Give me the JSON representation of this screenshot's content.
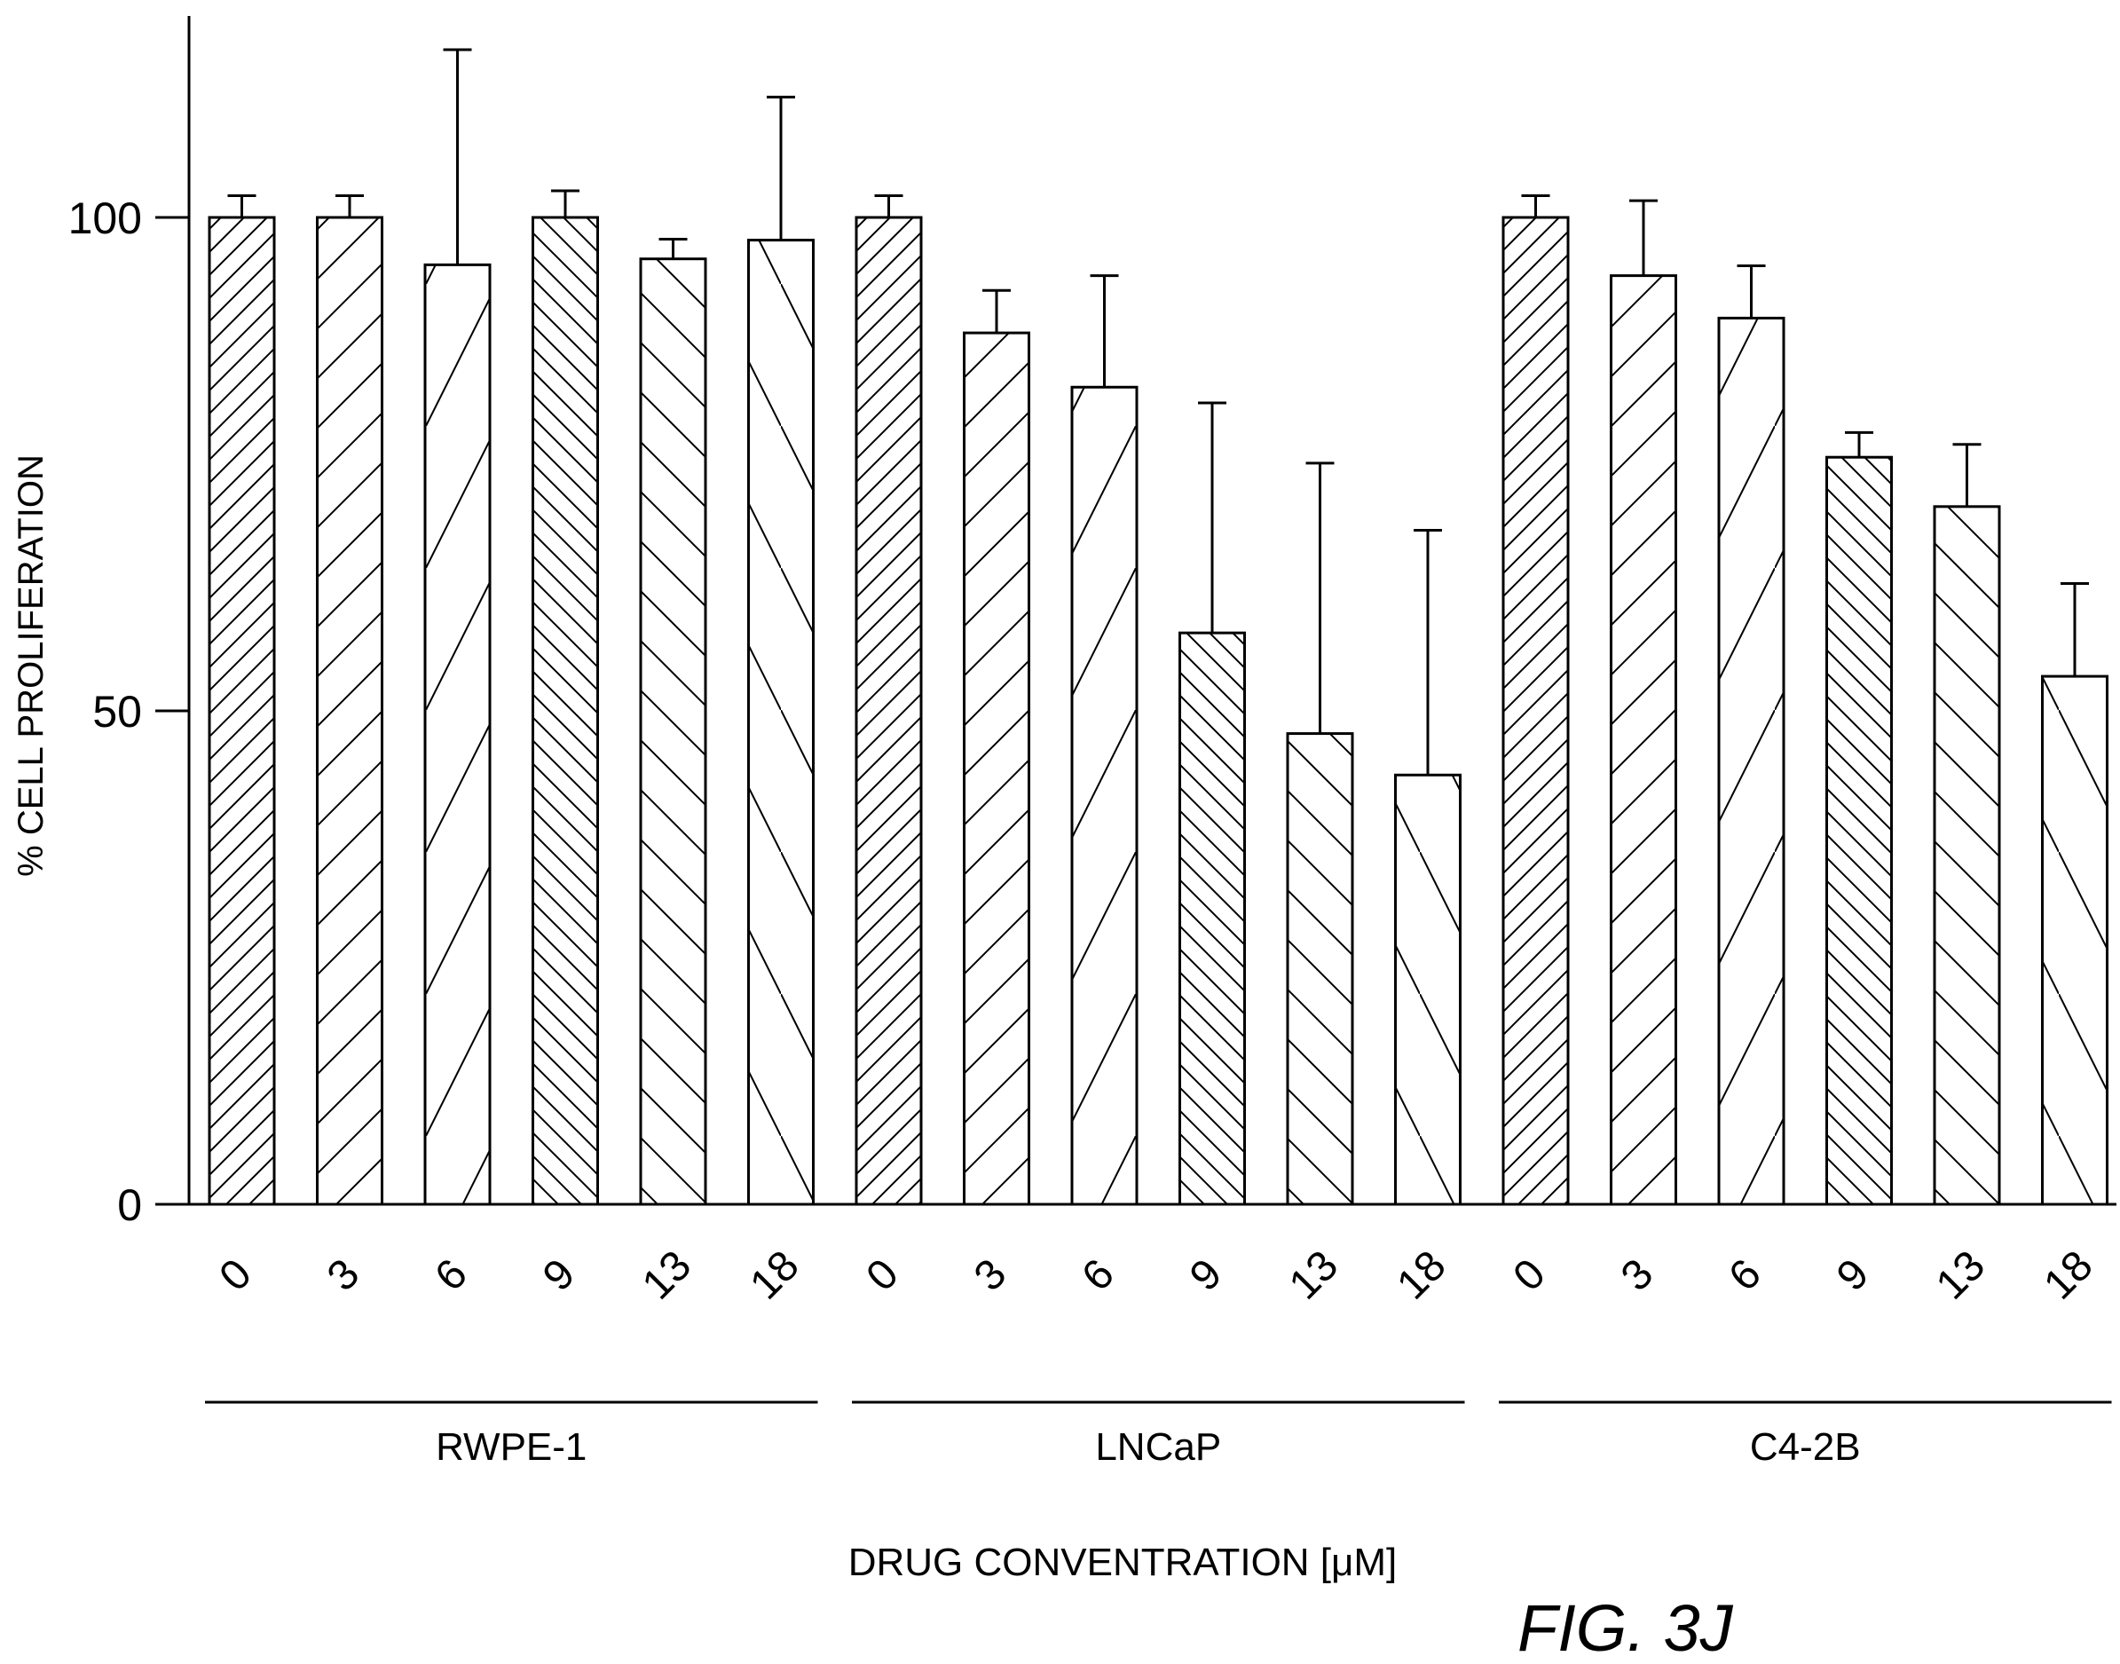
{
  "chart_data": {
    "type": "bar",
    "ylabel": "% CELL PROLIFERATION",
    "xlabel": "DRUG CONVENTRATION [μM]",
    "figure_label": "FIG. 3J",
    "ylim": [
      0,
      120
    ],
    "yticks": [
      0,
      50,
      100
    ],
    "grid": false,
    "legend": "none",
    "groups": [
      {
        "name": "RWPE-1",
        "categories": [
          "0",
          "3",
          "6",
          "9",
          "13",
          "18"
        ],
        "values": [
          100,
          100,
          95.2,
          100,
          95.8,
          97.7
        ],
        "error": [
          2.2,
          2.2,
          21.8,
          2.7,
          2.0,
          14.5
        ]
      },
      {
        "name": "LNCaP",
        "categories": [
          "0",
          "3",
          "6",
          "9",
          "13",
          "18"
        ],
        "values": [
          100,
          88.3,
          82.8,
          57.9,
          47.7,
          43.5
        ],
        "error": [
          2.2,
          4.3,
          11.3,
          23.3,
          27.4,
          24.8
        ]
      },
      {
        "name": "C4-2B",
        "categories": [
          "0",
          "3",
          "6",
          "9",
          "13",
          "18"
        ],
        "values": [
          100,
          94.1,
          89.8,
          75.7,
          70.7,
          53.5
        ],
        "error": [
          2.2,
          7.6,
          5.3,
          2.5,
          6.3,
          9.4
        ]
      }
    ],
    "pattern_order": [
      "dense-diagonal",
      "medium-diagonal",
      "sparse-diagonal",
      "dense-reverse-diagonal",
      "medium-reverse-diagonal",
      "sparse-reverse-diagonal"
    ]
  }
}
